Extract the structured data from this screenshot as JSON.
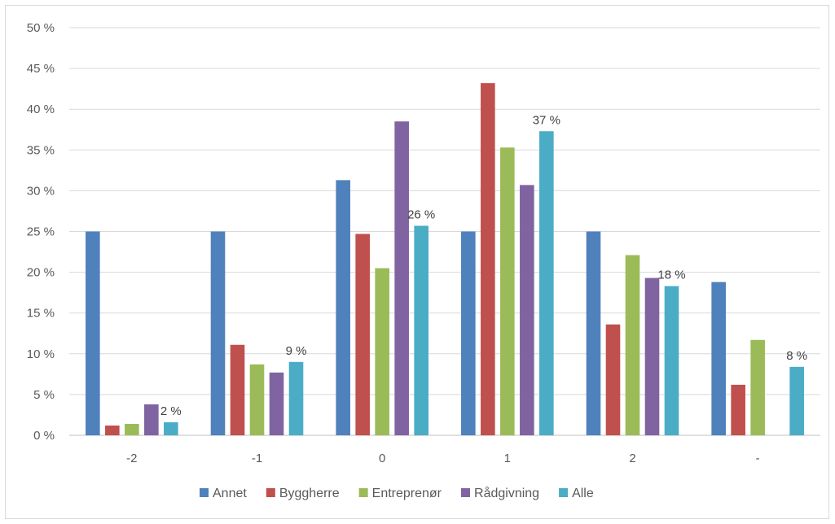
{
  "chart_data": {
    "type": "bar",
    "categories": [
      "-2",
      "-1",
      "0",
      "1",
      "2",
      "-"
    ],
    "series": [
      {
        "name": "Annet",
        "color": "#4F81BD",
        "values": [
          25,
          25,
          31.3,
          25,
          25,
          18.8
        ]
      },
      {
        "name": "Byggherre",
        "color": "#C0504D",
        "values": [
          1.2,
          11.1,
          24.7,
          43.2,
          13.6,
          6.2
        ]
      },
      {
        "name": "Entreprenør",
        "color": "#9BBB59",
        "values": [
          1.4,
          8.7,
          20.5,
          35.3,
          22.1,
          11.7
        ]
      },
      {
        "name": "Rådgivning",
        "color": "#8064A2",
        "values": [
          3.8,
          7.7,
          38.5,
          30.7,
          19.3,
          null
        ]
      },
      {
        "name": "Alle",
        "color": "#4BACC6",
        "values": [
          1.6,
          9,
          25.7,
          37.3,
          18.3,
          8.4
        ]
      }
    ],
    "data_labels": {
      "series": "Alle",
      "labels": [
        "2 %",
        "9 %",
        "26 %",
        "37 %",
        "18 %",
        "8 %"
      ]
    },
    "y_ticks": [
      "0 %",
      "5 %",
      "10 %",
      "15 %",
      "20 %",
      "25 %",
      "30 %",
      "35 %",
      "40 %",
      "45 %",
      "50 %"
    ],
    "ylim": [
      0,
      50
    ],
    "grid": true,
    "legend": "bottom",
    "title": "",
    "xlabel": "",
    "ylabel": ""
  }
}
